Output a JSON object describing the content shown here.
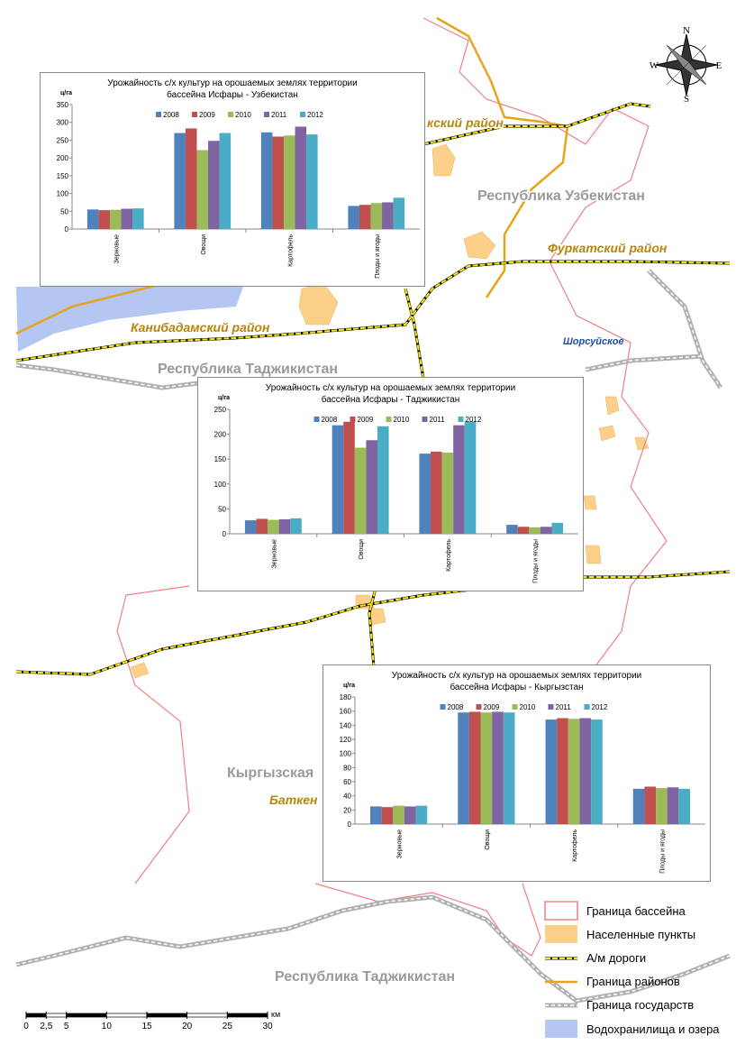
{
  "chart_data": [
    {
      "type": "bar",
      "title": "Урожайность с/х культур на орошаемых землях территории бассейна Исфары - Узбекистан",
      "y_label": "ц/га",
      "categories": [
        "Зерновые",
        "Овощи",
        "Картофель",
        "Плоды и ягоды"
      ],
      "series": [
        {
          "name": "2008",
          "color": "#4f81bd",
          "values": [
            55,
            270,
            272,
            65
          ]
        },
        {
          "name": "2009",
          "color": "#c0504d",
          "values": [
            53,
            283,
            260,
            68
          ]
        },
        {
          "name": "2010",
          "color": "#9bbb59",
          "values": [
            54,
            222,
            263,
            73
          ]
        },
        {
          "name": "2011",
          "color": "#8064a2",
          "values": [
            57,
            248,
            288,
            75
          ]
        },
        {
          "name": "2012",
          "color": "#4bacc6",
          "values": [
            58,
            270,
            266,
            88
          ]
        }
      ],
      "ylim": [
        0,
        350
      ],
      "yticks": [
        0,
        50,
        100,
        150,
        200,
        250,
        300,
        350
      ],
      "grid": false
    },
    {
      "type": "bar",
      "title": "Урожайность с/х культур на орошаемых землях территории бассейна Исфары - Таджикистан",
      "y_label": "ц/га",
      "categories": [
        "Зерновые",
        "Овощи",
        "Картофель",
        "Плоды и ягоды"
      ],
      "series": [
        {
          "name": "2008",
          "color": "#4f81bd",
          "values": [
            27,
            218,
            161,
            18
          ]
        },
        {
          "name": "2009",
          "color": "#c0504d",
          "values": [
            30,
            225,
            165,
            14
          ]
        },
        {
          "name": "2010",
          "color": "#9bbb59",
          "values": [
            28,
            173,
            163,
            13
          ]
        },
        {
          "name": "2011",
          "color": "#8064a2",
          "values": [
            29,
            188,
            218,
            14
          ]
        },
        {
          "name": "2012",
          "color": "#4bacc6",
          "values": [
            31,
            216,
            226,
            22
          ]
        }
      ],
      "ylim": [
        0,
        250
      ],
      "yticks": [
        0,
        50,
        100,
        150,
        200,
        250
      ],
      "grid": false
    },
    {
      "type": "bar",
      "title": "Урожайность с/х культур на орошаемых землях территории бассейна Исфары  - Кыргызстан",
      "y_label": "ц/га",
      "categories": [
        "Зерновые",
        "Овощи",
        "Картофель",
        "Плоды и ягоды"
      ],
      "series": [
        {
          "name": "2008",
          "color": "#4f81bd",
          "values": [
            25,
            158,
            148,
            50
          ]
        },
        {
          "name": "2009",
          "color": "#c0504d",
          "values": [
            24,
            159,
            150,
            53
          ]
        },
        {
          "name": "2010",
          "color": "#9bbb59",
          "values": [
            26,
            158,
            149,
            51
          ]
        },
        {
          "name": "2011",
          "color": "#8064a2",
          "values": [
            25,
            159,
            150,
            52
          ]
        },
        {
          "name": "2012",
          "color": "#4bacc6",
          "values": [
            26,
            158,
            148,
            50
          ]
        }
      ],
      "ylim": [
        0,
        180
      ],
      "yticks": [
        0,
        20,
        40,
        60,
        80,
        100,
        120,
        140,
        160,
        180
      ],
      "grid": false
    }
  ],
  "map": {
    "labels": [
      "кский район",
      "Республика Узбекистан",
      "Фуркатский район",
      "Канибадамский район",
      "Республика Таджикистан",
      "Шорсуйское",
      "Кыргызская",
      "Баткен",
      "Республика Таджикистан"
    ],
    "compass": [
      "N",
      "S",
      "W",
      "E"
    ],
    "legend": [
      "Граница бассейна",
      "Населенные пункты",
      "А/м дороги",
      "Граница районов",
      "Граница государств",
      "Водохранилища и озера"
    ],
    "scale": {
      "ticks": [
        0,
        {
          "value": 2.5,
          "label": "2,5"
        },
        5,
        10,
        15,
        20,
        25,
        30
      ],
      "unit": "км"
    }
  }
}
